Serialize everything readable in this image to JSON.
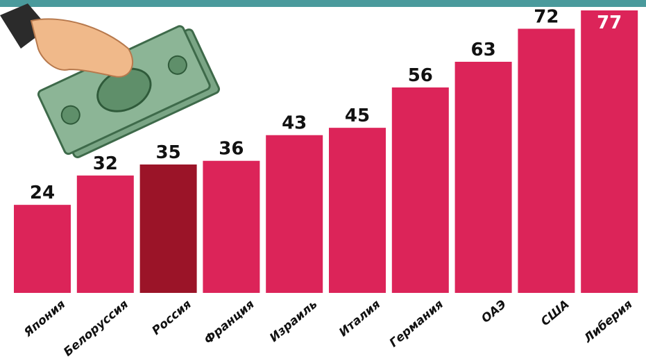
{
  "chart_data": {
    "type": "bar",
    "categories": [
      "Япония",
      "Белоруссия",
      "Россия",
      "Франция",
      "Израиль",
      "Италия",
      "Германия",
      "ОАЭ",
      "США",
      "Либерия"
    ],
    "values": [
      24,
      32,
      35,
      36,
      43,
      45,
      56,
      63,
      72,
      77
    ],
    "colors": [
      "#dc2459",
      "#dc2459",
      "#9b1428",
      "#dc2459",
      "#dc2459",
      "#dc2459",
      "#dc2459",
      "#dc2459",
      "#dc2459",
      "#dc2459"
    ],
    "ylim": [
      0,
      77
    ]
  }
}
